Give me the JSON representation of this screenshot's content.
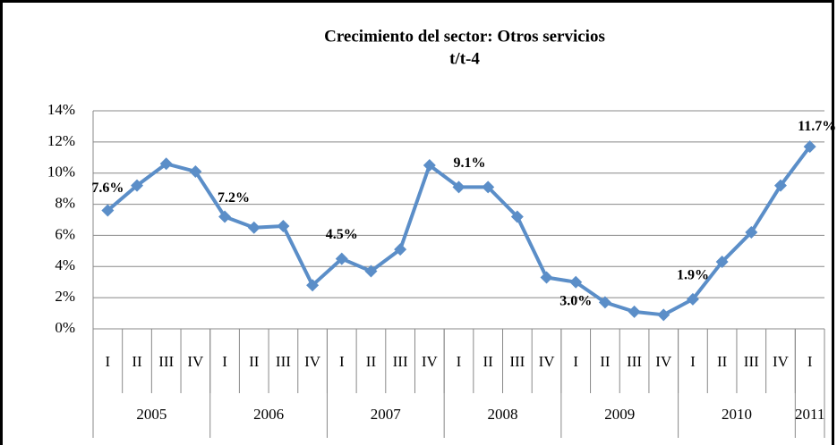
{
  "chart_data": {
    "type": "line",
    "title": "Crecimiento del sector: Otros servicios",
    "subtitle": "t/t-4",
    "categories": [
      "I",
      "II",
      "III",
      "IV",
      "I",
      "II",
      "III",
      "IV",
      "I",
      "II",
      "III",
      "IV",
      "I",
      "II",
      "III",
      "IV",
      "I",
      "II",
      "III",
      "IV",
      "I",
      "II",
      "III",
      "IV",
      "I"
    ],
    "groups": [
      {
        "name": "2005",
        "count": 4
      },
      {
        "name": "2006",
        "count": 4
      },
      {
        "name": "2007",
        "count": 4
      },
      {
        "name": "2008",
        "count": 4
      },
      {
        "name": "2009",
        "count": 4
      },
      {
        "name": "2010",
        "count": 4
      },
      {
        "name": "2011",
        "count": 1
      }
    ],
    "series": [
      {
        "name": "Otros servicios",
        "color": "#5b8ec8",
        "values": [
          7.6,
          9.2,
          10.6,
          10.1,
          7.2,
          6.5,
          6.6,
          2.8,
          4.5,
          3.7,
          5.1,
          10.5,
          9.1,
          9.1,
          7.2,
          3.3,
          3.0,
          1.7,
          1.1,
          0.9,
          1.9,
          4.3,
          6.2,
          9.2,
          11.7
        ],
        "value_labels": [
          "7.6%",
          null,
          null,
          null,
          "7.2%",
          null,
          null,
          null,
          "4.5%",
          null,
          null,
          null,
          "9.1%",
          null,
          null,
          null,
          "3.0%",
          null,
          null,
          null,
          "1.9%",
          null,
          null,
          null,
          "11.7%"
        ]
      }
    ],
    "ylim": [
      0,
      14
    ],
    "yticks": [
      {
        "value": 0,
        "label": "0%"
      },
      {
        "value": 2,
        "label": "2%"
      },
      {
        "value": 4,
        "label": "4%"
      },
      {
        "value": 6,
        "label": "6%"
      },
      {
        "value": 8,
        "label": "8%"
      },
      {
        "value": 10,
        "label": "10%"
      },
      {
        "value": 12,
        "label": "12%"
      },
      {
        "value": 14,
        "label": "14%"
      }
    ],
    "grid": true
  }
}
